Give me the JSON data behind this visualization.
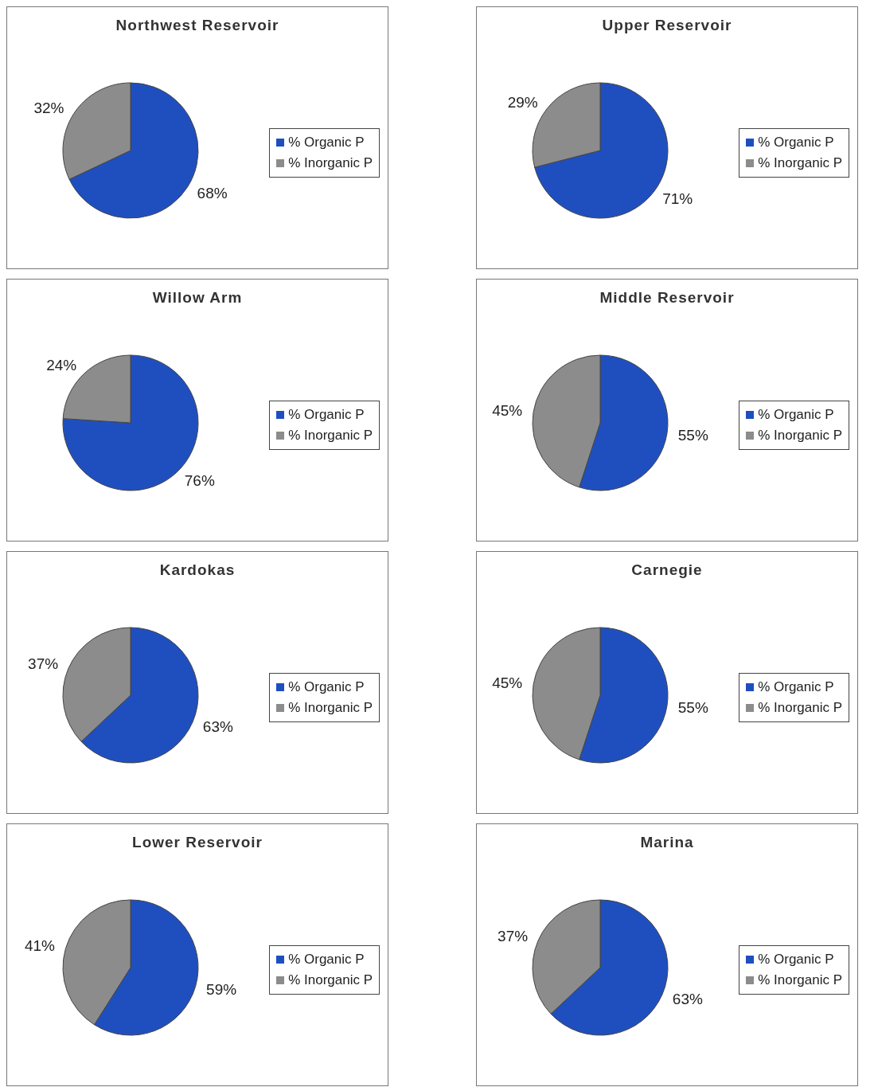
{
  "chart_data": [
    {
      "type": "pie",
      "title": "Northwest Reservoir",
      "categories": [
        "% Organic P",
        "% Inorganic P"
      ],
      "values": [
        68,
        32
      ],
      "colors": [
        "#1f4fbf",
        "#8c8c8c"
      ],
      "value_labels": [
        "68%",
        "32%"
      ],
      "legend": "right"
    },
    {
      "type": "pie",
      "title": "Upper Reservoir",
      "categories": [
        "% Organic P",
        "% Inorganic P"
      ],
      "values": [
        71,
        29
      ],
      "colors": [
        "#1f4fbf",
        "#8c8c8c"
      ],
      "value_labels": [
        "71%",
        "29%"
      ],
      "legend": "right"
    },
    {
      "type": "pie",
      "title": "Willow Arm",
      "categories": [
        "% Organic P",
        "% Inorganic P"
      ],
      "values": [
        76,
        24
      ],
      "colors": [
        "#1f4fbf",
        "#8c8c8c"
      ],
      "value_labels": [
        "76%",
        "24%"
      ],
      "legend": "right"
    },
    {
      "type": "pie",
      "title": "Middle Reservoir",
      "categories": [
        "% Organic P",
        "% Inorganic P"
      ],
      "values": [
        55,
        45
      ],
      "colors": [
        "#1f4fbf",
        "#8c8c8c"
      ],
      "value_labels": [
        "55%",
        "45%"
      ],
      "legend": "right"
    },
    {
      "type": "pie",
      "title": "Kardokas",
      "categories": [
        "% Organic P",
        "% Inorganic P"
      ],
      "values": [
        63,
        37
      ],
      "colors": [
        "#1f4fbf",
        "#8c8c8c"
      ],
      "value_labels": [
        "63%",
        "37%"
      ],
      "legend": "right"
    },
    {
      "type": "pie",
      "title": "Carnegie",
      "categories": [
        "% Organic P",
        "% Inorganic P"
      ],
      "values": [
        55,
        45
      ],
      "colors": [
        "#1f4fbf",
        "#8c8c8c"
      ],
      "value_labels": [
        "55%",
        "45%"
      ],
      "legend": "right"
    },
    {
      "type": "pie",
      "title": "Lower Reservoir",
      "categories": [
        "% Organic P",
        "% Inorganic P"
      ],
      "values": [
        59,
        41
      ],
      "colors": [
        "#1f4fbf",
        "#8c8c8c"
      ],
      "value_labels": [
        "59%",
        "41%"
      ],
      "legend": "right"
    },
    {
      "type": "pie",
      "title": "Marina",
      "categories": [
        "% Organic P",
        "% Inorganic P"
      ],
      "values": [
        63,
        37
      ],
      "colors": [
        "#1f4fbf",
        "#8c8c8c"
      ],
      "value_labels": [
        "63%",
        "37%"
      ],
      "legend": "right"
    }
  ]
}
